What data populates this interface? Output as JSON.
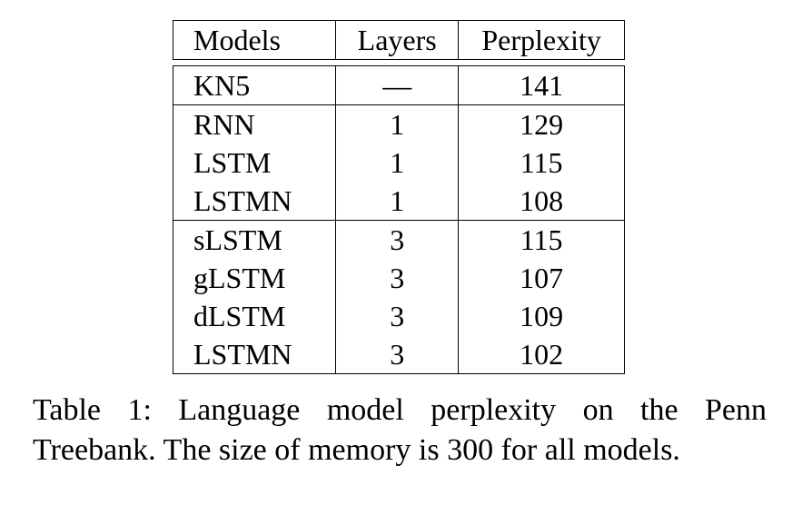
{
  "table": {
    "headers": [
      "Models",
      "Layers",
      "Perplexity"
    ],
    "groups": [
      [
        {
          "model": "KN5",
          "layers": "—",
          "perplexity": "141",
          "bold": false
        }
      ],
      [
        {
          "model": "RNN",
          "layers": "1",
          "perplexity": "129",
          "bold": false
        },
        {
          "model": "LSTM",
          "layers": "1",
          "perplexity": "115",
          "bold": false
        },
        {
          "model": "LSTMN",
          "layers": "1",
          "perplexity": "108",
          "bold": true
        }
      ],
      [
        {
          "model": "sLSTM",
          "layers": "3",
          "perplexity": "115",
          "bold": false
        },
        {
          "model": "gLSTM",
          "layers": "3",
          "perplexity": "107",
          "bold": false
        },
        {
          "model": "dLSTM",
          "layers": "3",
          "perplexity": "109",
          "bold": false
        },
        {
          "model": "LSTMN",
          "layers": "3",
          "perplexity": "102",
          "bold": true
        }
      ]
    ]
  },
  "caption": {
    "line1": "Table 1: Language model perplexity on the Penn",
    "line2": "Treebank. The size of memory is 300 for all models."
  }
}
